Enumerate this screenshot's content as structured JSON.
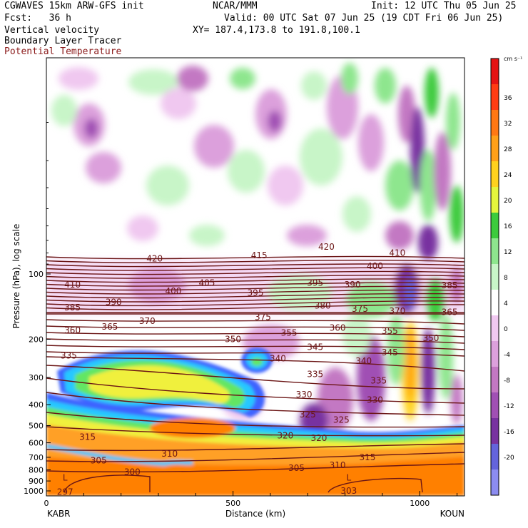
{
  "header": {
    "model": "CGWAVES 15km ARW-GFS init",
    "org": "NCAR/MMM",
    "init": "Init: 12 UTC Thu 05 Jun 25",
    "fcst": "Fcst:   36 h",
    "valid": "Valid: 00 UTC Sat 07 Jun 25 (19 CDT Fri 06 Jun 25)",
    "fields": [
      "Vertical velocity",
      "Boundary Layer Tracer",
      "Potential Temperature"
    ],
    "xy": "XY= 187.4,173.8 to 191.8,100.1"
  },
  "colors": {
    "theta": "#6b1515",
    "positive": [
      "#c8f5c8",
      "#8ee68e",
      "#3ccb3c",
      "#e6f53c",
      "#ffd21e",
      "#ffa019",
      "#ff7814",
      "#ff3c14",
      "#e61414"
    ],
    "negative": [
      "#f0c8f0",
      "#dca0dc",
      "#c378c3",
      "#a050b4",
      "#7832a0",
      "#6464dc",
      "#8c8cf0"
    ],
    "tracer": [
      "#3c64ff",
      "#28c8ff",
      "#64e664",
      "#f0f03c",
      "#ffa028",
      "#ff8000"
    ]
  },
  "chart_data": {
    "type": "heatmap",
    "xlabel": "Distance (km)",
    "ylabel": "Pressure (hPa), log scale",
    "x_ticks": [
      "0",
      "500",
      "1000"
    ],
    "x_range_km": [
      0,
      1120
    ],
    "y_ticks": [
      "100",
      "200",
      "300",
      "400",
      "500",
      "600",
      "700",
      "800",
      "900",
      "1000"
    ],
    "y_scale": "log",
    "endpoints": {
      "left": "KABR",
      "right": "KOUN"
    },
    "colorbar": {
      "unit": "cm s⁻¹",
      "ticks": [
        "36",
        "32",
        "28",
        "24",
        "20",
        "16",
        "12",
        "8",
        "4",
        "0",
        "-4",
        "-8",
        "-12",
        "-16",
        "-20"
      ]
    },
    "theta_labels": [
      {
        "label": "420",
        "x_km": 290,
        "p": 85
      },
      {
        "label": "415",
        "x_km": 570,
        "p": 82
      },
      {
        "label": "420",
        "x_km": 750,
        "p": 75
      },
      {
        "label": "410",
        "x_km": 940,
        "p": 80
      },
      {
        "label": "410",
        "x_km": 70,
        "p": 112
      },
      {
        "label": "400",
        "x_km": 340,
        "p": 120
      },
      {
        "label": "405",
        "x_km": 430,
        "p": 110
      },
      {
        "label": "395",
        "x_km": 560,
        "p": 122
      },
      {
        "label": "395",
        "x_km": 720,
        "p": 110
      },
      {
        "label": "390",
        "x_km": 820,
        "p": 112
      },
      {
        "label": "400",
        "x_km": 880,
        "p": 92
      },
      {
        "label": "385",
        "x_km": 1080,
        "p": 113
      },
      {
        "label": "385",
        "x_km": 70,
        "p": 143
      },
      {
        "label": "390",
        "x_km": 180,
        "p": 135
      },
      {
        "label": "380",
        "x_km": 740,
        "p": 140
      },
      {
        "label": "375",
        "x_km": 840,
        "p": 145
      },
      {
        "label": "370",
        "x_km": 940,
        "p": 148
      },
      {
        "label": "365",
        "x_km": 1080,
        "p": 150
      },
      {
        "label": "370",
        "x_km": 270,
        "p": 165
      },
      {
        "label": "375",
        "x_km": 580,
        "p": 158
      },
      {
        "label": "360",
        "x_km": 70,
        "p": 182
      },
      {
        "label": "365",
        "x_km": 170,
        "p": 175
      },
      {
        "label": "360",
        "x_km": 780,
        "p": 177
      },
      {
        "label": "355",
        "x_km": 650,
        "p": 187
      },
      {
        "label": "355",
        "x_km": 920,
        "p": 183
      },
      {
        "label": "350",
        "x_km": 500,
        "p": 200
      },
      {
        "label": "350",
        "x_km": 1030,
        "p": 198
      },
      {
        "label": "345",
        "x_km": 720,
        "p": 217
      },
      {
        "label": "345",
        "x_km": 920,
        "p": 230
      },
      {
        "label": "335",
        "x_km": 60,
        "p": 238
      },
      {
        "label": "340",
        "x_km": 620,
        "p": 245
      },
      {
        "label": "340",
        "x_km": 850,
        "p": 252
      },
      {
        "label": "335",
        "x_km": 720,
        "p": 290
      },
      {
        "label": "335",
        "x_km": 890,
        "p": 310
      },
      {
        "label": "330",
        "x_km": 690,
        "p": 360
      },
      {
        "label": "330",
        "x_km": 880,
        "p": 380
      },
      {
        "label": "325",
        "x_km": 700,
        "p": 445
      },
      {
        "label": "325",
        "x_km": 790,
        "p": 470
      },
      {
        "label": "320",
        "x_km": 640,
        "p": 555
      },
      {
        "label": "320",
        "x_km": 730,
        "p": 570
      },
      {
        "label": "315",
        "x_km": 110,
        "p": 565
      },
      {
        "label": "310",
        "x_km": 330,
        "p": 675
      },
      {
        "label": "315",
        "x_km": 860,
        "p": 700
      },
      {
        "label": "310",
        "x_km": 780,
        "p": 760
      },
      {
        "label": "305",
        "x_km": 670,
        "p": 785
      },
      {
        "label": "305",
        "x_km": 140,
        "p": 725
      },
      {
        "label": "300",
        "x_km": 230,
        "p": 818
      },
      {
        "label": "297",
        "x_km": 50,
        "p": 1010
      },
      {
        "label": "303",
        "x_km": 810,
        "p": 1000
      }
    ],
    "low_markers": [
      {
        "label": "L",
        "x_km": 50,
        "p": 870
      },
      {
        "label": "L",
        "x_km": 810,
        "p": 870
      }
    ]
  }
}
